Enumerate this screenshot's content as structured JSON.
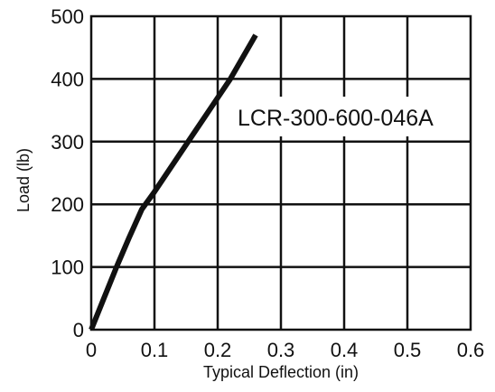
{
  "chart_data": {
    "type": "line",
    "title": "",
    "xlabel": "Typical Deflection (in)",
    "ylabel": "Load (lb)",
    "xlim": [
      0,
      0.6
    ],
    "ylim": [
      0,
      500
    ],
    "x_ticks": [
      0,
      0.1,
      0.2,
      0.3,
      0.4,
      0.5,
      0.6
    ],
    "x_tick_labels": [
      "0",
      "0.1",
      "0.2",
      "0.3",
      "0.4",
      "0.5",
      "0.6"
    ],
    "y_ticks": [
      0,
      100,
      200,
      300,
      400,
      500
    ],
    "y_tick_labels": [
      "0",
      "100",
      "200",
      "300",
      "400",
      "500"
    ],
    "grid": true,
    "legend": "none",
    "annotations": [
      {
        "text": "LCR-300-600-046A"
      }
    ],
    "series": [
      {
        "color": "#111111",
        "x": [
          0,
          0.02,
          0.04,
          0.06,
          0.08,
          0.1,
          0.13,
          0.16,
          0.19,
          0.22,
          0.26
        ],
        "y": [
          0,
          50,
          100,
          147,
          192,
          220,
          265,
          310,
          355,
          400,
          470
        ]
      }
    ]
  },
  "colors": {
    "background": "#ffffff",
    "grid": "#111111",
    "line": "#111111",
    "text": "#111111"
  }
}
